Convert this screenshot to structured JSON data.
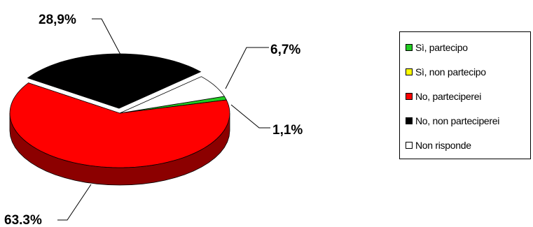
{
  "chart_data": {
    "type": "pie",
    "style": "3d-exploded",
    "title": "",
    "slices": [
      {
        "label": "Sì, partecipo",
        "value": 1.1,
        "display": "1,1%",
        "color": "#22cc22"
      },
      {
        "label": "Sì, non partecipo",
        "value": 0.0,
        "display": "",
        "color": "#ffff00"
      },
      {
        "label": "No, parteciperei",
        "value": 63.3,
        "display": "63.3%",
        "color": "#ff0000"
      },
      {
        "label": "No, non parteciperei",
        "value": 28.9,
        "display": "28,9%",
        "color": "#000000"
      },
      {
        "label": "Non risponde",
        "value": 6.7,
        "display": "6,7%",
        "color": "#ffffff"
      }
    ],
    "legend": {
      "position": "right"
    }
  }
}
